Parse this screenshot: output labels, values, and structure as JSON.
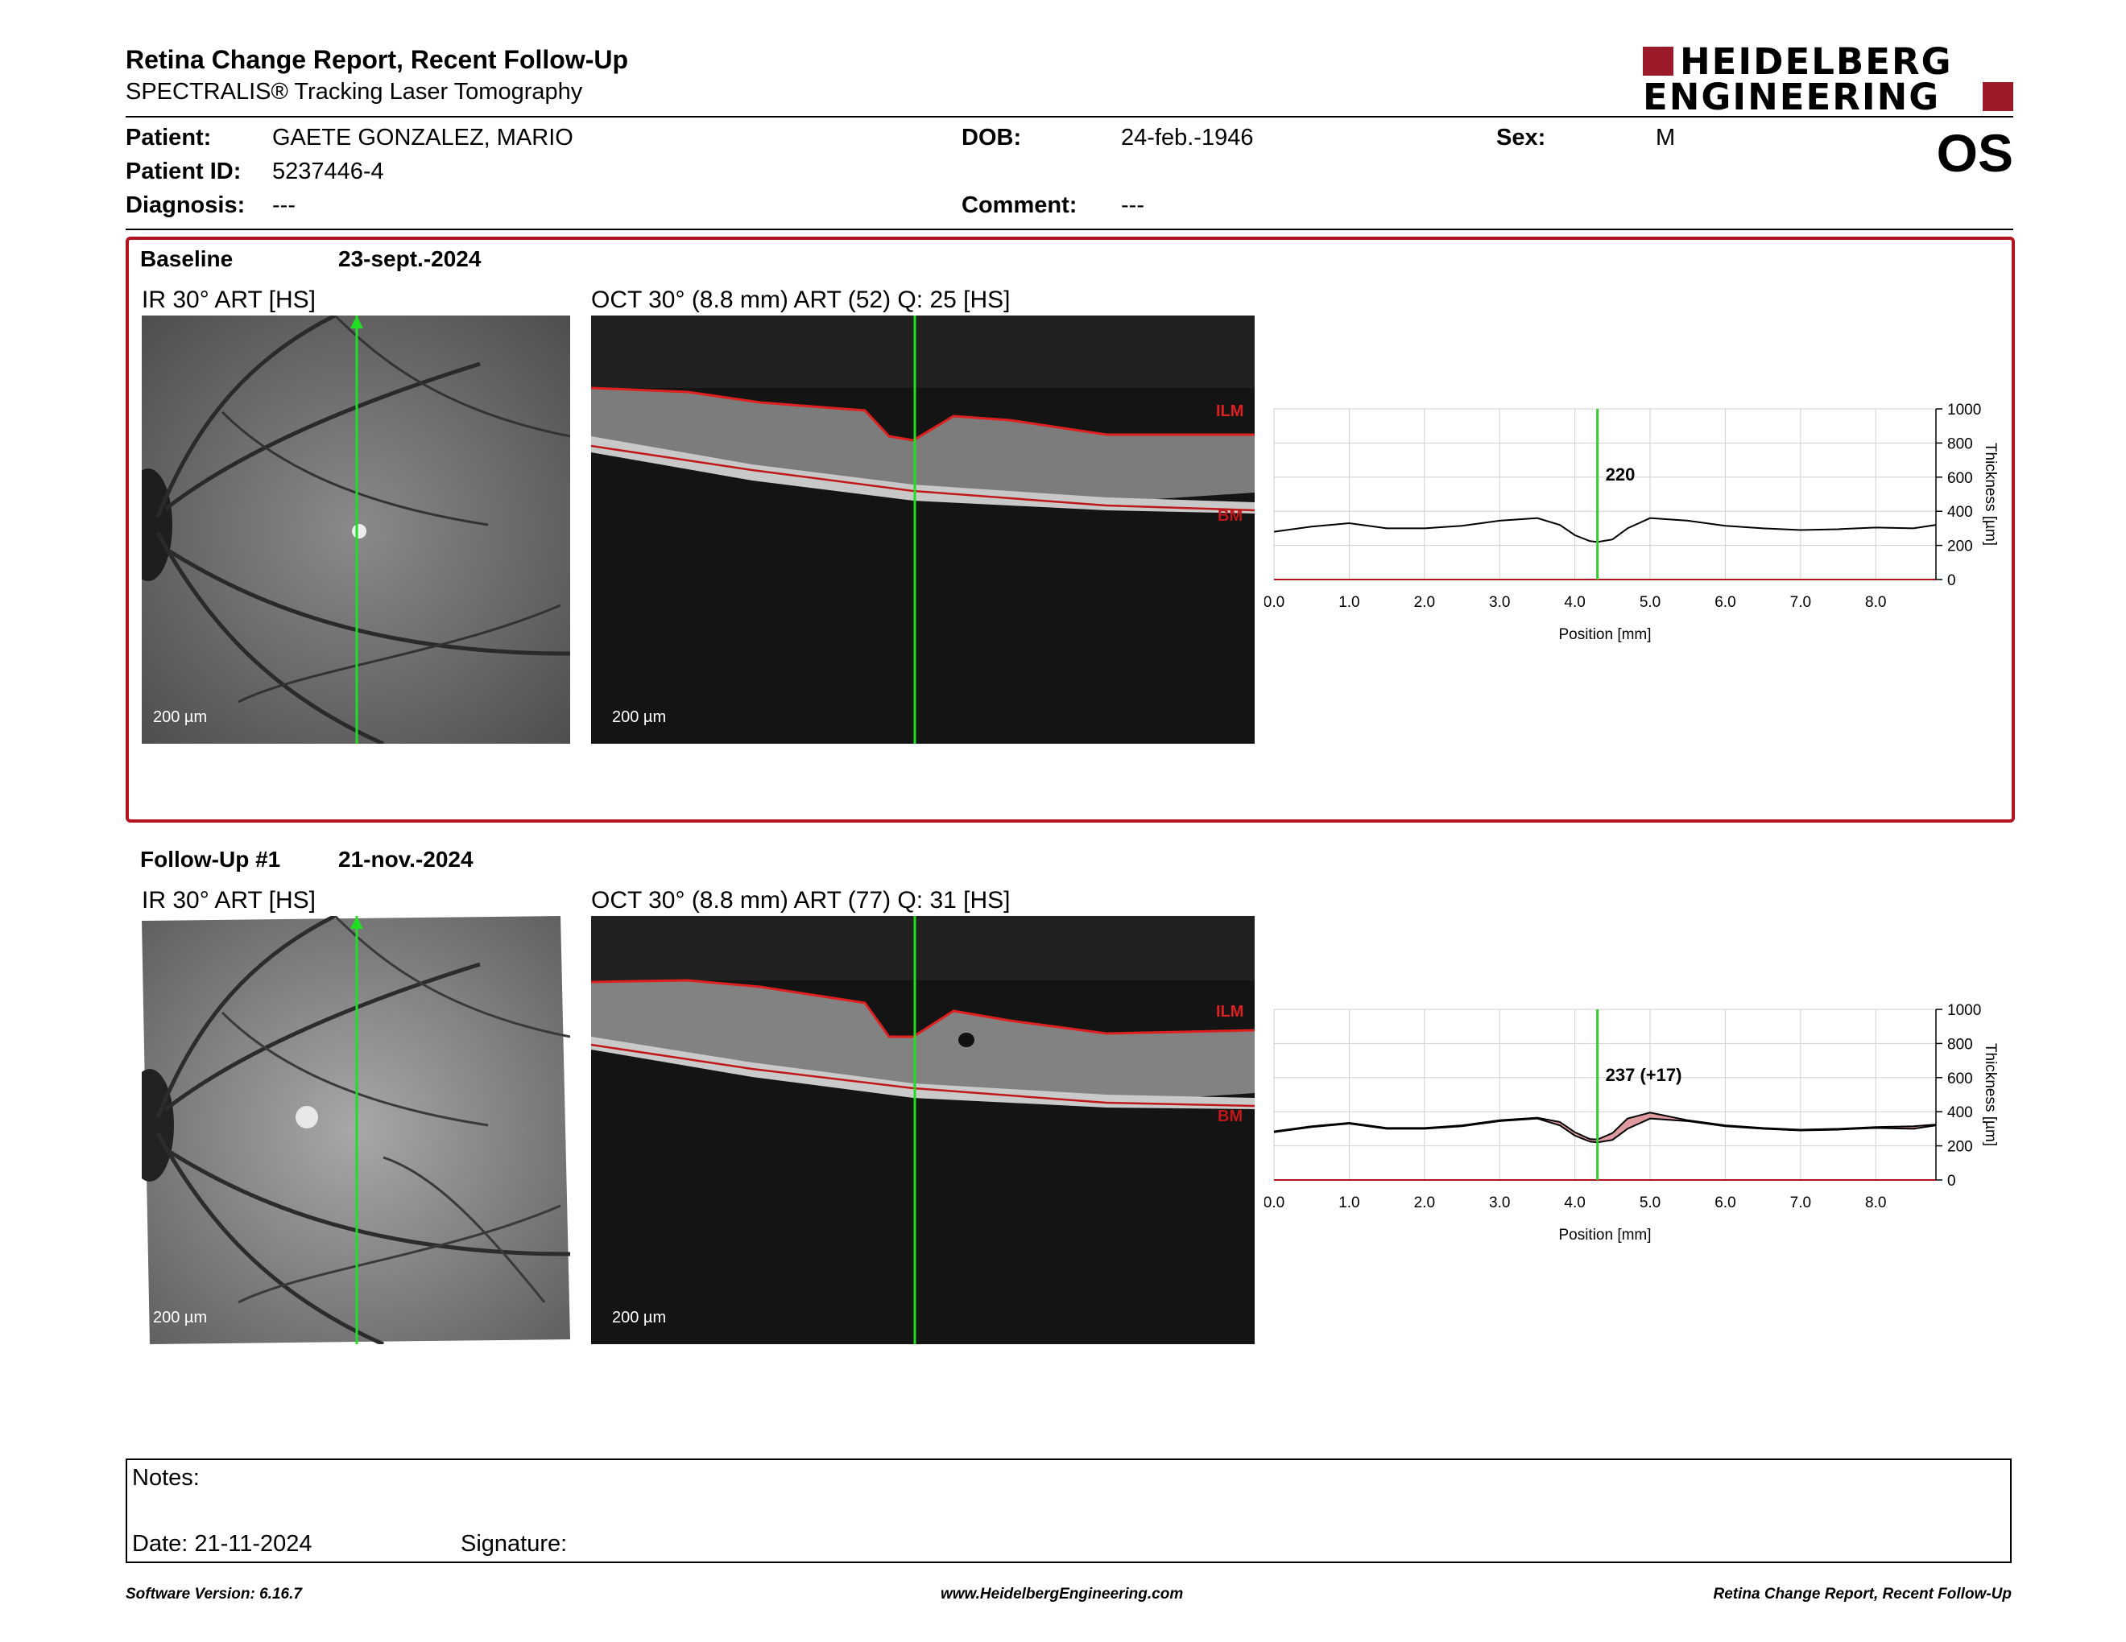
{
  "report": {
    "title": "Retina Change Report, Recent Follow-Up",
    "subtitle": "SPECTRALIS® Tracking Laser Tomography",
    "logo_line1": "HEIDELBERG",
    "logo_line2": "ENGINEERING"
  },
  "patient": {
    "patient_label": "Patient:",
    "patient_value": "GAETE GONZALEZ, MARIO",
    "id_label": "Patient ID:",
    "id_value": "5237446-4",
    "diagnosis_label": "Diagnosis:",
    "diagnosis_value": "---",
    "dob_label": "DOB:",
    "dob_value": "24-feb.-1946",
    "comment_label": "Comment:",
    "comment_value": "---",
    "sex_label": "Sex:",
    "sex_value": "M",
    "eye": "OS"
  },
  "baseline": {
    "label": "Baseline",
    "date": "23-sept.-2024",
    "ir_title": "IR 30° ART [HS]",
    "oct_title": "OCT 30° (8.8 mm) ART (52) Q: 25 [HS]",
    "ir_scale": "200 µm",
    "oct_scale": "200 µm",
    "ilm": "ILM",
    "bm": "BM"
  },
  "followup": {
    "label": "Follow-Up #1",
    "date": "21-nov.-2024",
    "ir_title": "IR 30° ART [HS]",
    "oct_title": "OCT 30° (8.8 mm) ART (77) Q: 31 [HS]",
    "ir_scale": "200 µm",
    "oct_scale": "200 µm",
    "ilm": "ILM",
    "bm": "BM"
  },
  "chart_data": [
    {
      "type": "line",
      "xlabel": "Position [mm]",
      "ylabel": "Thickness [µm]",
      "xlim": [
        0,
        8.8
      ],
      "ylim": [
        0,
        1000
      ],
      "xticks": [
        "0.0",
        "1.0",
        "2.0",
        "3.0",
        "4.0",
        "5.0",
        "6.0",
        "7.0",
        "8.0"
      ],
      "yticks": [
        "0",
        "200",
        "400",
        "600",
        "800",
        "1000"
      ],
      "cursor_x": 4.3,
      "cursor_label": "220",
      "grid": true,
      "series": [
        {
          "x": [
            0.0,
            0.5,
            1.0,
            1.5,
            2.0,
            2.5,
            3.0,
            3.5,
            3.8,
            4.0,
            4.2,
            4.3,
            4.5,
            4.7,
            5.0,
            5.5,
            6.0,
            6.5,
            7.0,
            7.5,
            8.0,
            8.5,
            8.8
          ],
          "values": [
            280,
            310,
            330,
            300,
            300,
            315,
            345,
            360,
            320,
            260,
            225,
            220,
            235,
            300,
            360,
            345,
            315,
            300,
            290,
            295,
            305,
            300,
            320
          ]
        }
      ],
      "colors": {
        "line": "#000000",
        "cursor": "#33cc33",
        "axis_base": "#b3121f"
      }
    },
    {
      "type": "line",
      "xlabel": "Position [mm]",
      "ylabel": "Thickness [µm]",
      "xlim": [
        0,
        8.8
      ],
      "ylim": [
        0,
        1000
      ],
      "xticks": [
        "0.0",
        "1.0",
        "2.0",
        "3.0",
        "4.0",
        "5.0",
        "6.0",
        "7.0",
        "8.0"
      ],
      "yticks": [
        "0",
        "200",
        "400",
        "600",
        "800",
        "1000"
      ],
      "cursor_x": 4.3,
      "cursor_label": "237 (+17)",
      "grid": true,
      "series": [
        {
          "x": [
            0.0,
            0.5,
            1.0,
            1.5,
            2.0,
            2.5,
            3.0,
            3.5,
            3.8,
            4.0,
            4.2,
            4.3,
            4.5,
            4.7,
            5.0,
            5.5,
            6.0,
            6.5,
            7.0,
            7.5,
            8.0,
            8.5,
            8.8
          ],
          "values": [
            280,
            310,
            330,
            300,
            300,
            315,
            345,
            360,
            320,
            260,
            225,
            220,
            235,
            300,
            360,
            345,
            315,
            300,
            290,
            295,
            305,
            300,
            320
          ]
        },
        {
          "x": [
            0.0,
            0.5,
            1.0,
            1.5,
            2.0,
            2.5,
            3.0,
            3.5,
            3.8,
            4.0,
            4.2,
            4.3,
            4.5,
            4.7,
            5.0,
            5.5,
            6.0,
            6.5,
            7.0,
            7.5,
            8.0,
            8.5,
            8.8
          ],
          "values": [
            285,
            315,
            335,
            305,
            305,
            320,
            350,
            365,
            340,
            280,
            240,
            237,
            275,
            360,
            395,
            350,
            320,
            305,
            295,
            300,
            310,
            315,
            325
          ]
        }
      ],
      "colors": {
        "line": "#000000",
        "cursor": "#33cc33",
        "diff_fill": "#d98a8e",
        "axis_base": "#b3121f"
      }
    }
  ],
  "notes": {
    "notes_label": "Notes:",
    "date_label": "Date: 21-11-2024",
    "signature_label": "Signature:"
  },
  "footer": {
    "left": "Software Version: 6.16.7",
    "center": "www.HeidelbergEngineering.com",
    "right": "Retina Change Report, Recent Follow-Up"
  }
}
